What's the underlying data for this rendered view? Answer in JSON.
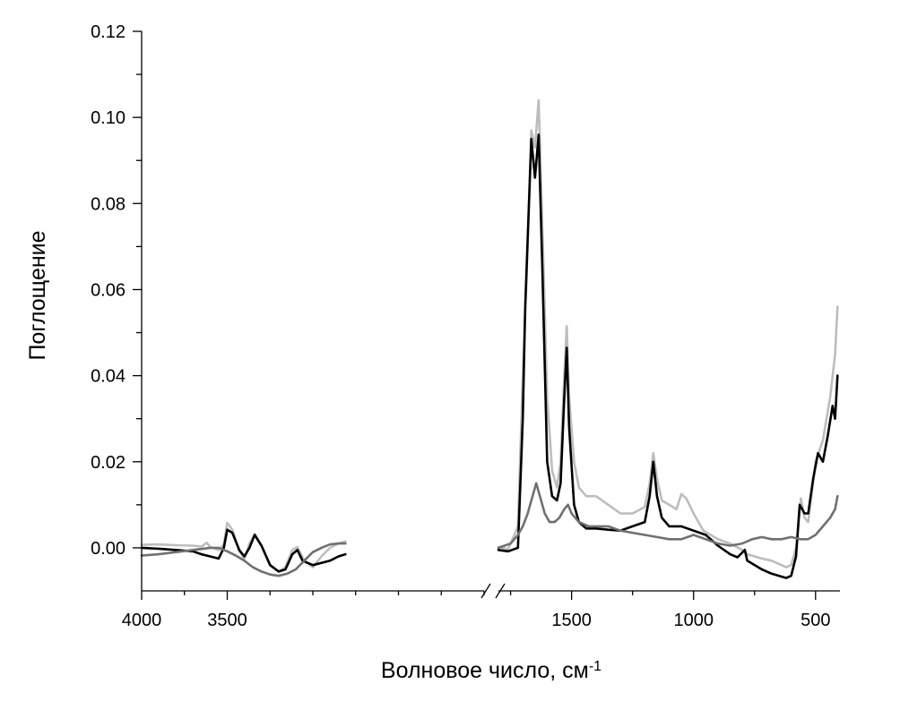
{
  "chart_data": {
    "type": "line",
    "title": "",
    "xlabel": "Волновое число, см",
    "xlabel_sup": "-1",
    "ylabel": "Поглощение",
    "grid": false,
    "legend": "none",
    "broken_x_axis": true,
    "ylim": [
      -0.01,
      0.12
    ],
    "y_ticks": [
      "0.00",
      "0.02",
      "0.04",
      "0.06",
      "0.08",
      "0.10",
      "0.12"
    ],
    "y_tick_values": [
      0.0,
      0.02,
      0.04,
      0.06,
      0.08,
      0.1,
      0.12
    ],
    "segments": [
      {
        "xlim": [
          4000,
          2000
        ],
        "ticks": [
          {
            "value": 4000,
            "label": "4000"
          },
          {
            "value": 3500,
            "label": "3500"
          }
        ]
      },
      {
        "xlim": [
          1800,
          400
        ],
        "ticks": [
          {
            "value": 1500,
            "label": "1500"
          },
          {
            "value": 1000,
            "label": "1000"
          },
          {
            "value": 500,
            "label": "500"
          }
        ]
      }
    ],
    "series": [
      {
        "color": "#bdbdbd",
        "points": [
          [
            4000,
            0.0007
          ],
          [
            3900,
            0.0008
          ],
          [
            3800,
            0.0006
          ],
          [
            3700,
            0.0005
          ],
          [
            3650,
            0.0003
          ],
          [
            3620,
            0.0012
          ],
          [
            3600,
            0.0002
          ],
          [
            3550,
            -0.0005
          ],
          [
            3520,
            0.0008
          ],
          [
            3500,
            0.0058
          ],
          [
            3470,
            0.0042
          ],
          [
            3430,
            -0.0008
          ],
          [
            3400,
            -0.0025
          ],
          [
            3370,
            0.001
          ],
          [
            3340,
            0.0032
          ],
          [
            3300,
            0.0005
          ],
          [
            3250,
            -0.004
          ],
          [
            3200,
            -0.0055
          ],
          [
            3160,
            -0.0045
          ],
          [
            3120,
            -0.0005
          ],
          [
            3090,
            0.0002
          ],
          [
            3050,
            -0.003
          ],
          [
            3000,
            -0.0045
          ],
          [
            2950,
            -0.002
          ],
          [
            2900,
            0.0
          ],
          [
            2850,
            0.001
          ],
          [
            2810,
            0.0015
          ],
          [
            1800,
            0.0002
          ],
          [
            1760,
            -0.0003
          ],
          [
            1720,
            0.005
          ],
          [
            1700,
            0.04
          ],
          [
            1685,
            0.062
          ],
          [
            1665,
            0.097
          ],
          [
            1650,
            0.093
          ],
          [
            1635,
            0.104
          ],
          [
            1620,
            0.075
          ],
          [
            1600,
            0.035
          ],
          [
            1580,
            0.018
          ],
          [
            1560,
            0.014
          ],
          [
            1545,
            0.02
          ],
          [
            1530,
            0.04
          ],
          [
            1520,
            0.0515
          ],
          [
            1510,
            0.035
          ],
          [
            1490,
            0.02
          ],
          [
            1470,
            0.014
          ],
          [
            1440,
            0.012
          ],
          [
            1400,
            0.012
          ],
          [
            1350,
            0.01
          ],
          [
            1300,
            0.008
          ],
          [
            1250,
            0.008
          ],
          [
            1200,
            0.0095
          ],
          [
            1180,
            0.015
          ],
          [
            1165,
            0.022
          ],
          [
            1150,
            0.016
          ],
          [
            1130,
            0.011
          ],
          [
            1100,
            0.01
          ],
          [
            1070,
            0.009
          ],
          [
            1050,
            0.0125
          ],
          [
            1030,
            0.0115
          ],
          [
            1000,
            0.008
          ],
          [
            960,
            0.004
          ],
          [
            900,
            0.002
          ],
          [
            850,
            0.001
          ],
          [
            800,
            -0.0005
          ],
          [
            780,
            -0.0015
          ],
          [
            720,
            -0.0025
          ],
          [
            680,
            -0.003
          ],
          [
            620,
            -0.0045
          ],
          [
            600,
            -0.004
          ],
          [
            580,
            0.0
          ],
          [
            560,
            0.0115
          ],
          [
            545,
            0.007
          ],
          [
            530,
            0.006
          ],
          [
            500,
            0.02
          ],
          [
            470,
            0.025
          ],
          [
            440,
            0.035
          ],
          [
            420,
            0.045
          ],
          [
            410,
            0.056
          ]
        ]
      },
      {
        "color": "#000000",
        "points": [
          [
            4000,
            0.0
          ],
          [
            3900,
            -0.0002
          ],
          [
            3800,
            -0.0005
          ],
          [
            3700,
            -0.0008
          ],
          [
            3650,
            -0.0015
          ],
          [
            3600,
            -0.002
          ],
          [
            3550,
            -0.0025
          ],
          [
            3520,
            0.0
          ],
          [
            3500,
            0.0042
          ],
          [
            3470,
            0.0035
          ],
          [
            3430,
            -0.0005
          ],
          [
            3400,
            -0.002
          ],
          [
            3370,
            0.0
          ],
          [
            3340,
            0.003
          ],
          [
            3300,
            0.0005
          ],
          [
            3250,
            -0.004
          ],
          [
            3200,
            -0.0055
          ],
          [
            3160,
            -0.005
          ],
          [
            3120,
            -0.0015
          ],
          [
            3090,
            -0.0005
          ],
          [
            3060,
            -0.003
          ],
          [
            3000,
            -0.004
          ],
          [
            2950,
            -0.0035
          ],
          [
            2900,
            -0.003
          ],
          [
            2850,
            -0.002
          ],
          [
            2810,
            -0.0015
          ],
          [
            1800,
            -0.0005
          ],
          [
            1760,
            -0.0008
          ],
          [
            1720,
            0.0
          ],
          [
            1700,
            0.03
          ],
          [
            1690,
            0.056
          ],
          [
            1665,
            0.095
          ],
          [
            1650,
            0.086
          ],
          [
            1635,
            0.096
          ],
          [
            1620,
            0.065
          ],
          [
            1600,
            0.02
          ],
          [
            1580,
            0.012
          ],
          [
            1560,
            0.011
          ],
          [
            1545,
            0.015
          ],
          [
            1530,
            0.035
          ],
          [
            1520,
            0.0465
          ],
          [
            1510,
            0.028
          ],
          [
            1490,
            0.01
          ],
          [
            1470,
            0.006
          ],
          [
            1440,
            0.0045
          ],
          [
            1400,
            0.0045
          ],
          [
            1350,
            0.0042
          ],
          [
            1300,
            0.004
          ],
          [
            1250,
            0.005
          ],
          [
            1200,
            0.006
          ],
          [
            1180,
            0.012
          ],
          [
            1165,
            0.02
          ],
          [
            1150,
            0.012
          ],
          [
            1130,
            0.007
          ],
          [
            1100,
            0.005
          ],
          [
            1050,
            0.005
          ],
          [
            1000,
            0.004
          ],
          [
            950,
            0.003
          ],
          [
            900,
            0.0005
          ],
          [
            850,
            -0.0015
          ],
          [
            820,
            -0.0022
          ],
          [
            790,
            -0.0005
          ],
          [
            780,
            -0.003
          ],
          [
            720,
            -0.005
          ],
          [
            680,
            -0.006
          ],
          [
            620,
            -0.007
          ],
          [
            600,
            -0.0065
          ],
          [
            580,
            -0.002
          ],
          [
            565,
            0.01
          ],
          [
            545,
            0.008
          ],
          [
            530,
            0.008
          ],
          [
            510,
            0.016
          ],
          [
            490,
            0.022
          ],
          [
            470,
            0.02
          ],
          [
            450,
            0.026
          ],
          [
            430,
            0.033
          ],
          [
            420,
            0.03
          ],
          [
            410,
            0.04
          ]
        ]
      },
      {
        "color": "#707070",
        "points": [
          [
            4000,
            -0.0018
          ],
          [
            3900,
            -0.0015
          ],
          [
            3800,
            -0.001
          ],
          [
            3700,
            -0.0005
          ],
          [
            3600,
            0.0
          ],
          [
            3550,
            0.0
          ],
          [
            3500,
            -0.0008
          ],
          [
            3450,
            -0.0018
          ],
          [
            3400,
            -0.003
          ],
          [
            3350,
            -0.0045
          ],
          [
            3300,
            -0.0055
          ],
          [
            3250,
            -0.0062
          ],
          [
            3200,
            -0.0065
          ],
          [
            3150,
            -0.006
          ],
          [
            3100,
            -0.005
          ],
          [
            3050,
            -0.003
          ],
          [
            3000,
            -0.001
          ],
          [
            2950,
            0.0
          ],
          [
            2900,
            0.0008
          ],
          [
            2850,
            0.001
          ],
          [
            2810,
            0.001
          ],
          [
            1800,
            0.0
          ],
          [
            1750,
            0.001
          ],
          [
            1720,
            0.003
          ],
          [
            1700,
            0.005
          ],
          [
            1680,
            0.008
          ],
          [
            1660,
            0.012
          ],
          [
            1645,
            0.015
          ],
          [
            1630,
            0.012
          ],
          [
            1610,
            0.008
          ],
          [
            1590,
            0.006
          ],
          [
            1570,
            0.006
          ],
          [
            1550,
            0.007
          ],
          [
            1530,
            0.009
          ],
          [
            1515,
            0.01
          ],
          [
            1500,
            0.008
          ],
          [
            1470,
            0.006
          ],
          [
            1430,
            0.005
          ],
          [
            1400,
            0.005
          ],
          [
            1350,
            0.005
          ],
          [
            1300,
            0.004
          ],
          [
            1250,
            0.0035
          ],
          [
            1200,
            0.003
          ],
          [
            1150,
            0.0025
          ],
          [
            1100,
            0.002
          ],
          [
            1050,
            0.002
          ],
          [
            1000,
            0.003
          ],
          [
            950,
            0.002
          ],
          [
            900,
            0.001
          ],
          [
            850,
            0.0005
          ],
          [
            800,
            0.001
          ],
          [
            760,
            0.002
          ],
          [
            720,
            0.0025
          ],
          [
            680,
            0.002
          ],
          [
            640,
            0.002
          ],
          [
            600,
            0.0025
          ],
          [
            560,
            0.002
          ],
          [
            530,
            0.002
          ],
          [
            500,
            0.003
          ],
          [
            470,
            0.005
          ],
          [
            440,
            0.007
          ],
          [
            420,
            0.009
          ],
          [
            410,
            0.012
          ]
        ]
      }
    ]
  }
}
